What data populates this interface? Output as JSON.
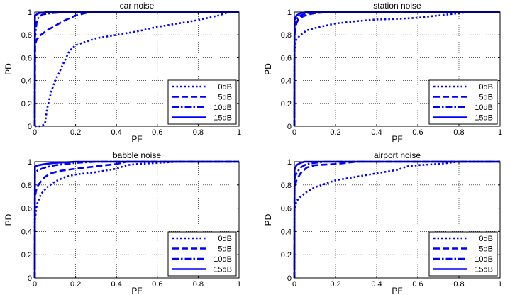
{
  "page": {
    "background": "#ffffff",
    "line_color": "#0000ff"
  },
  "chart_data": [
    {
      "type": "line",
      "title": "car noise",
      "xlabel": "PF",
      "ylabel": "PD",
      "xlim": [
        0,
        1
      ],
      "ylim": [
        0,
        1
      ],
      "grid": true,
      "legend_position": "bottom-right",
      "xticks": [
        "0",
        "0.2",
        "0.4",
        "0.6",
        "0.8",
        "1"
      ],
      "yticks": [
        "0",
        "0.2",
        "0.4",
        "0.6",
        "0.8",
        "1"
      ],
      "series": [
        {
          "name": "0dB",
          "style": "dotted",
          "x": [
            0,
            0.03,
            0.05,
            0.06,
            0.08,
            0.1,
            0.12,
            0.14,
            0.17,
            0.2,
            0.3,
            0.4,
            0.5,
            0.6,
            0.7,
            0.8,
            0.9,
            0.95,
            1
          ],
          "y": [
            0,
            0,
            0.02,
            0.15,
            0.3,
            0.4,
            0.47,
            0.55,
            0.66,
            0.71,
            0.77,
            0.8,
            0.83,
            0.87,
            0.9,
            0.93,
            0.97,
            1,
            1
          ]
        },
        {
          "name": "5dB",
          "style": "dashed",
          "x": [
            0,
            0.002,
            0.01,
            0.03,
            0.06,
            0.1,
            0.15,
            0.2,
            0.27,
            1
          ],
          "y": [
            0,
            0.72,
            0.76,
            0.8,
            0.84,
            0.88,
            0.93,
            0.97,
            1,
            1
          ]
        },
        {
          "name": "10dB",
          "style": "dashdot",
          "x": [
            0,
            0.001,
            0.01,
            0.02,
            0.04,
            0.08,
            0.15,
            0.2,
            1
          ],
          "y": [
            0,
            0.78,
            0.92,
            0.96,
            0.98,
            0.99,
            1,
            1,
            1
          ]
        },
        {
          "name": "15dB",
          "style": "solid",
          "x": [
            0,
            0.001,
            0.02,
            0.06,
            0.12,
            1
          ],
          "y": [
            0,
            0.97,
            0.99,
            1,
            1,
            1
          ]
        }
      ]
    },
    {
      "type": "line",
      "title": "station noise",
      "xlabel": "PF",
      "ylabel": "PD",
      "xlim": [
        0,
        1
      ],
      "ylim": [
        0,
        1
      ],
      "grid": true,
      "legend_position": "bottom-right",
      "xticks": [
        "0",
        "0.2",
        "0.4",
        "0.6",
        "0.8",
        "1"
      ],
      "yticks": [
        "0",
        "0.2",
        "0.4",
        "0.6",
        "0.8",
        "1"
      ],
      "series": [
        {
          "name": "0dB",
          "style": "dotted",
          "x": [
            0,
            0.001,
            0.01,
            0.03,
            0.06,
            0.1,
            0.15,
            0.2,
            0.3,
            0.4,
            0.5,
            0.6,
            0.7,
            0.8,
            0.85,
            1
          ],
          "y": [
            0,
            0.68,
            0.76,
            0.8,
            0.84,
            0.86,
            0.88,
            0.9,
            0.92,
            0.935,
            0.94,
            0.95,
            0.97,
            0.99,
            1,
            1
          ]
        },
        {
          "name": "5dB",
          "style": "dashed",
          "x": [
            0,
            0.001,
            0.01,
            0.02,
            0.04,
            0.07,
            0.1,
            0.17,
            1
          ],
          "y": [
            0,
            0.8,
            0.9,
            0.94,
            0.96,
            0.98,
            0.99,
            1,
            1
          ]
        },
        {
          "name": "10dB",
          "style": "dashdot",
          "x": [
            0,
            0.001,
            0.01,
            0.03,
            0.06,
            0.1,
            1
          ],
          "y": [
            0,
            0.88,
            0.94,
            0.97,
            0.99,
            1,
            1
          ]
        },
        {
          "name": "15dB",
          "style": "solid",
          "x": [
            0,
            0.001,
            0.01,
            0.03,
            0.06,
            1
          ],
          "y": [
            0,
            0.93,
            0.97,
            0.99,
            1,
            1
          ]
        }
      ]
    },
    {
      "type": "line",
      "title": "babble noise",
      "xlabel": "PF",
      "ylabel": "PD",
      "xlim": [
        0,
        1
      ],
      "ylim": [
        0,
        1
      ],
      "grid": true,
      "legend_position": "bottom-right",
      "xticks": [
        "0",
        "0.2",
        "0.4",
        "0.6",
        "0.8",
        "1"
      ],
      "yticks": [
        "0",
        "0.2",
        "0.4",
        "0.6",
        "0.8",
        "1"
      ],
      "series": [
        {
          "name": "0dB",
          "style": "dotted",
          "x": [
            0,
            0.001,
            0.01,
            0.03,
            0.06,
            0.1,
            0.15,
            0.2,
            0.3,
            0.4,
            0.45,
            0.5,
            0.6,
            0.7,
            1
          ],
          "y": [
            0,
            0.5,
            0.63,
            0.72,
            0.78,
            0.83,
            0.87,
            0.89,
            0.91,
            0.94,
            0.97,
            0.98,
            0.99,
            1,
            1
          ]
        },
        {
          "name": "5dB",
          "style": "dashed",
          "x": [
            0,
            0.001,
            0.01,
            0.03,
            0.05,
            0.08,
            0.12,
            0.2,
            0.3,
            0.4,
            0.45,
            1
          ],
          "y": [
            0,
            0.7,
            0.78,
            0.83,
            0.87,
            0.9,
            0.92,
            0.94,
            0.96,
            0.98,
            1,
            1
          ]
        },
        {
          "name": "10dB",
          "style": "dashdot",
          "x": [
            0,
            0.001,
            0.02,
            0.05,
            0.1,
            0.15,
            0.2,
            0.3,
            1
          ],
          "y": [
            0,
            0.91,
            0.93,
            0.95,
            0.97,
            0.98,
            0.99,
            1,
            1
          ]
        },
        {
          "name": "15dB",
          "style": "solid",
          "x": [
            0,
            0.001,
            0.02,
            0.05,
            0.1,
            0.2,
            1
          ],
          "y": [
            0,
            0.96,
            0.97,
            0.98,
            0.99,
            1,
            1
          ]
        }
      ]
    },
    {
      "type": "line",
      "title": "airport noise",
      "xlabel": "PF",
      "ylabel": "PD",
      "xlim": [
        0,
        1
      ],
      "ylim": [
        0,
        1
      ],
      "grid": true,
      "legend_position": "bottom-right",
      "xticks": [
        "0",
        "0.2",
        "0.4",
        "0.6",
        "0.8",
        "1"
      ],
      "yticks": [
        "0",
        "0.2",
        "0.4",
        "0.6",
        "0.8",
        "1"
      ],
      "series": [
        {
          "name": "0dB",
          "style": "dotted",
          "x": [
            0,
            0.001,
            0.01,
            0.03,
            0.06,
            0.1,
            0.15,
            0.2,
            0.3,
            0.4,
            0.5,
            0.55,
            0.6,
            0.7,
            0.8,
            1
          ],
          "y": [
            0,
            0.58,
            0.66,
            0.7,
            0.74,
            0.78,
            0.81,
            0.84,
            0.87,
            0.9,
            0.93,
            0.96,
            0.97,
            0.98,
            1,
            1
          ]
        },
        {
          "name": "5dB",
          "style": "dashed",
          "x": [
            0,
            0.001,
            0.01,
            0.03,
            0.06,
            0.1,
            0.2,
            0.3,
            1
          ],
          "y": [
            0,
            0.77,
            0.84,
            0.9,
            0.95,
            0.97,
            0.98,
            1,
            1
          ]
        },
        {
          "name": "10dB",
          "style": "dashdot",
          "x": [
            0,
            0.001,
            0.01,
            0.03,
            0.06,
            0.1,
            0.15,
            1
          ],
          "y": [
            0,
            0.85,
            0.9,
            0.95,
            0.98,
            0.99,
            1,
            1
          ]
        },
        {
          "name": "15dB",
          "style": "solid",
          "x": [
            0,
            0.001,
            0.01,
            0.03,
            0.05,
            1
          ],
          "y": [
            0,
            0.93,
            0.97,
            0.99,
            1,
            1
          ]
        }
      ]
    }
  ]
}
